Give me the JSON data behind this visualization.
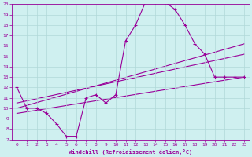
{
  "xlabel": "Windchill (Refroidissement éolien,°C)",
  "ylabel": "",
  "xlim": [
    -0.5,
    23.5
  ],
  "ylim": [
    7,
    20
  ],
  "xticks": [
    0,
    1,
    2,
    3,
    4,
    5,
    6,
    7,
    8,
    9,
    10,
    11,
    12,
    13,
    14,
    15,
    16,
    17,
    18,
    19,
    20,
    21,
    22,
    23
  ],
  "yticks": [
    7,
    8,
    9,
    10,
    11,
    12,
    13,
    14,
    15,
    16,
    17,
    18,
    19,
    20
  ],
  "bg_color": "#cff0f0",
  "grid_color": "#b0d8d8",
  "line_color": "#990099",
  "main_curve": {
    "x": [
      0,
      1,
      2,
      3,
      4,
      5,
      6,
      7,
      8,
      9,
      10,
      11,
      12,
      13,
      14,
      15,
      16,
      17,
      18,
      19,
      20,
      21,
      22,
      23
    ],
    "y": [
      12,
      10,
      10,
      9.5,
      8.5,
      7.3,
      7.3,
      11,
      11.3,
      10.5,
      11.3,
      16.5,
      18.0,
      20.2,
      20.2,
      20.2,
      19.5,
      18.0,
      16.2,
      15.2,
      13.0,
      13.0,
      13.0,
      13.0
    ]
  },
  "trend_lines": [
    {
      "x": [
        0,
        23
      ],
      "y": [
        10.0,
        16.2
      ]
    },
    {
      "x": [
        0,
        23
      ],
      "y": [
        10.5,
        15.2
      ]
    },
    {
      "x": [
        0,
        23
      ],
      "y": [
        9.5,
        13.0
      ]
    }
  ]
}
